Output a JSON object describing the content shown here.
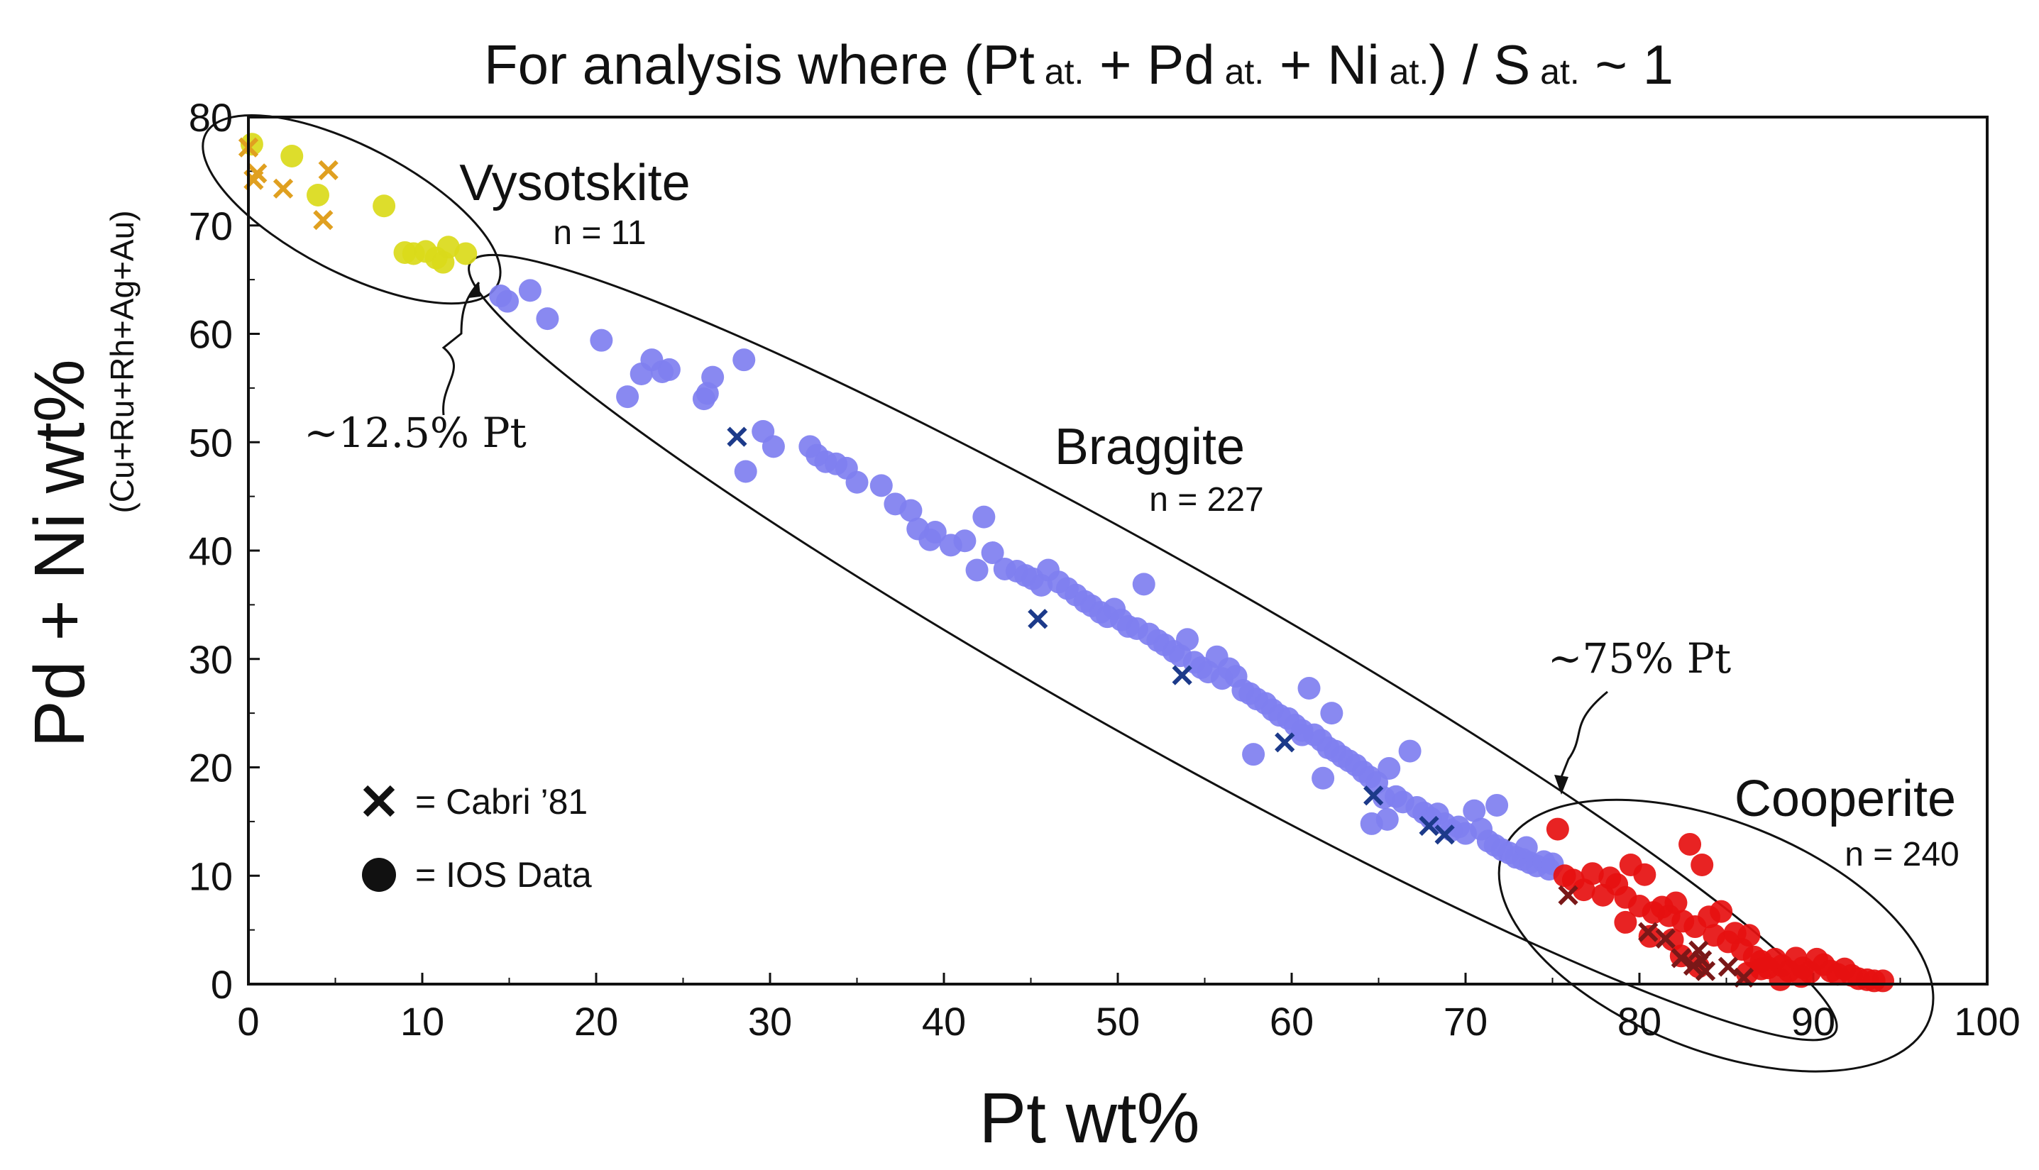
{
  "chart_data": {
    "type": "scatter",
    "title": {
      "prefix": "For analysis where  (Pt",
      "pt_sub": " at.",
      "plus_pd": " + Pd",
      "pd_sub": " at.",
      "plus_ni": " + Ni",
      "ni_sub": " at.",
      "suffix": ") / S",
      "s_sub": " at.",
      "tail": " ~ 1"
    },
    "xlabel": "Pt wt%",
    "ylabel": "Pd + Ni wt%",
    "ylabel_sub": "(Cu+Ru+Rh+Ag+Au)",
    "xlim": [
      0,
      100
    ],
    "ylim": [
      0,
      80
    ],
    "xticks": [
      0,
      10,
      20,
      30,
      40,
      50,
      60,
      70,
      80,
      90,
      100
    ],
    "yticks": [
      0,
      10,
      20,
      30,
      40,
      50,
      60,
      70,
      80
    ],
    "legend": {
      "position": "bottom-left",
      "cross_label": "= Cabri ’81",
      "circle_label": "= IOS Data"
    },
    "groups": [
      {
        "name": "Vysotskite",
        "n_label": "n = 11",
        "color": "#dada1a",
        "cross_color": "#e0a020",
        "ios": [
          [
            0.2,
            77.5
          ],
          [
            2.5,
            76.4
          ],
          [
            4,
            72.8
          ],
          [
            7.8,
            71.8
          ],
          [
            9,
            67.5
          ],
          [
            9.5,
            67.4
          ],
          [
            10.2,
            67.6
          ],
          [
            10.8,
            67
          ],
          [
            11.2,
            66.6
          ],
          [
            11.5,
            68
          ],
          [
            12.5,
            67.4
          ]
        ],
        "cabri": [
          [
            0,
            77.2
          ],
          [
            0.3,
            74.2
          ],
          [
            0.5,
            74.8
          ],
          [
            2,
            73.4
          ],
          [
            4.3,
            70.5
          ],
          [
            4.6,
            75.1
          ]
        ]
      },
      {
        "name": "Braggite",
        "n_label": "n = 227",
        "color": "#7f7ff0",
        "cross_color": "#1c3a8a",
        "ios": [
          [
            14.5,
            63.5
          ],
          [
            14.9,
            63
          ],
          [
            16.2,
            64
          ],
          [
            17.2,
            61.4
          ],
          [
            20.3,
            59.4
          ],
          [
            21.8,
            54.2
          ],
          [
            22.6,
            56.3
          ],
          [
            23.2,
            57.6
          ],
          [
            23.8,
            56.5
          ],
          [
            24.2,
            56.7
          ],
          [
            26.2,
            54
          ],
          [
            26.7,
            56
          ],
          [
            26.4,
            54.5
          ],
          [
            28.5,
            57.6
          ],
          [
            28.6,
            47.3
          ],
          [
            29.6,
            51
          ],
          [
            30.2,
            49.6
          ],
          [
            32.3,
            49.6
          ],
          [
            32.7,
            48.8
          ],
          [
            33.2,
            48.2
          ],
          [
            33.8,
            48
          ],
          [
            34.4,
            47.6
          ],
          [
            35,
            46.3
          ],
          [
            36.4,
            46
          ],
          [
            37.2,
            44.3
          ],
          [
            38.1,
            43.7
          ],
          [
            38.5,
            42
          ],
          [
            39.2,
            41
          ],
          [
            39.5,
            41.7
          ],
          [
            40.4,
            40.5
          ],
          [
            41.2,
            40.9
          ],
          [
            41.9,
            38.2
          ],
          [
            42.3,
            43.1
          ],
          [
            42.8,
            39.8
          ],
          [
            43.5,
            38.3
          ],
          [
            44.2,
            38.1
          ],
          [
            44.7,
            37.7
          ],
          [
            45.1,
            37.4
          ],
          [
            45.6,
            36.8
          ],
          [
            46,
            38.2
          ],
          [
            46.6,
            37.1
          ],
          [
            47.1,
            36.5
          ],
          [
            47.6,
            35.9
          ],
          [
            48.1,
            35.3
          ],
          [
            48.5,
            34.9
          ],
          [
            49,
            34.3
          ],
          [
            49.4,
            33.9
          ],
          [
            49.8,
            34.6
          ],
          [
            50.2,
            33.6
          ],
          [
            50.6,
            33
          ],
          [
            51.1,
            32.8
          ],
          [
            51.5,
            36.9
          ],
          [
            51.8,
            32.3
          ],
          [
            52.3,
            31.7
          ],
          [
            52.7,
            31.3
          ],
          [
            53.2,
            30.7
          ],
          [
            53.6,
            30.3
          ],
          [
            54,
            31.8
          ],
          [
            54.4,
            29.7
          ],
          [
            54.8,
            29.2
          ],
          [
            55.2,
            28.8
          ],
          [
            55.7,
            30.2
          ],
          [
            56,
            28.2
          ],
          [
            56.4,
            29.1
          ],
          [
            56.8,
            28.4
          ],
          [
            57.2,
            27.1
          ],
          [
            57.6,
            26.8
          ],
          [
            58,
            26.3
          ],
          [
            58.5,
            25.9
          ],
          [
            58.9,
            25.3
          ],
          [
            59.3,
            24.8
          ],
          [
            59.8,
            24.5
          ],
          [
            60.2,
            23.9
          ],
          [
            60.6,
            23.4
          ],
          [
            61,
            27.3
          ],
          [
            61.3,
            23
          ],
          [
            61.7,
            22.5
          ],
          [
            62.1,
            21.8
          ],
          [
            62.5,
            21.5
          ],
          [
            62.9,
            21
          ],
          [
            63.3,
            20.6
          ],
          [
            63.7,
            20.2
          ],
          [
            64.1,
            19.6
          ],
          [
            64.5,
            19.1
          ],
          [
            64.9,
            18.6
          ],
          [
            65.3,
            17.2
          ],
          [
            65.6,
            19.9
          ],
          [
            66,
            17.3
          ],
          [
            66.4,
            16.8
          ],
          [
            66.8,
            21.5
          ],
          [
            67.2,
            16.3
          ],
          [
            67.6,
            15.8
          ],
          [
            68,
            15.3
          ],
          [
            68.4,
            15.7
          ],
          [
            68.8,
            14.8
          ],
          [
            69.2,
            14.2
          ],
          [
            69.6,
            14.5
          ],
          [
            70,
            13.9
          ],
          [
            70.5,
            16
          ],
          [
            70.9,
            14.3
          ],
          [
            71.3,
            13.2
          ],
          [
            71.7,
            12.8
          ],
          [
            72.1,
            12.4
          ],
          [
            72.5,
            12.1
          ],
          [
            72.9,
            11.7
          ],
          [
            73.3,
            11.5
          ],
          [
            73.7,
            11.2
          ],
          [
            74.1,
            10.9
          ],
          [
            74.5,
            11.3
          ],
          [
            74.8,
            10.6
          ],
          [
            75,
            11.1
          ],
          [
            57.8,
            21.2
          ],
          [
            60.6,
            23
          ],
          [
            62.3,
            25
          ],
          [
            64.6,
            14.8
          ],
          [
            65.5,
            15.2
          ],
          [
            61.8,
            19
          ],
          [
            71.8,
            16.5
          ],
          [
            73.5,
            12.6
          ]
        ],
        "cabri": [
          [
            28.1,
            50.5
          ],
          [
            45.4,
            33.7
          ],
          [
            53.7,
            28.5
          ],
          [
            59.6,
            22.3
          ],
          [
            64.7,
            17.4
          ],
          [
            67.9,
            14.6
          ],
          [
            68.8,
            13.8
          ]
        ]
      },
      {
        "name": "Cooperite",
        "n_label": "n = 240",
        "color": "#e61010",
        "cross_color": "#7a1818",
        "ios": [
          [
            75.3,
            14.3
          ],
          [
            75.7,
            10
          ],
          [
            76.2,
            9.6
          ],
          [
            76.8,
            8.7
          ],
          [
            77.3,
            10.2
          ],
          [
            77.9,
            8.2
          ],
          [
            78.3,
            9.8
          ],
          [
            78.7,
            9.2
          ],
          [
            79.2,
            8
          ],
          [
            79.5,
            11
          ],
          [
            80,
            7.2
          ],
          [
            80.3,
            10.1
          ],
          [
            80.8,
            6.6
          ],
          [
            81.3,
            7.1
          ],
          [
            81.7,
            6.3
          ],
          [
            82.1,
            7.5
          ],
          [
            82.5,
            5.8
          ],
          [
            82.9,
            12.9
          ],
          [
            83.2,
            5.3
          ],
          [
            83.6,
            11
          ],
          [
            84,
            6.2
          ],
          [
            84.3,
            4.5
          ],
          [
            84.7,
            6.7
          ],
          [
            85.1,
            3.9
          ],
          [
            85.5,
            4.7
          ],
          [
            85.9,
            3.2
          ],
          [
            86.3,
            4.5
          ],
          [
            86.6,
            2.5
          ],
          [
            87,
            2.1
          ],
          [
            87.4,
            1.5
          ],
          [
            87.8,
            2.3
          ],
          [
            88.2,
            1.7
          ],
          [
            88.6,
            1.2
          ],
          [
            89,
            2.4
          ],
          [
            89.4,
            1.5
          ],
          [
            89.8,
            1.1
          ],
          [
            90.2,
            2.3
          ],
          [
            90.6,
            1.8
          ],
          [
            91,
            1.2
          ],
          [
            91.4,
            0.9
          ],
          [
            91.8,
            1.4
          ],
          [
            92.2,
            0.8
          ],
          [
            92.6,
            0.5
          ],
          [
            93.1,
            0.4
          ],
          [
            93.5,
            0.3
          ],
          [
            94,
            0.3
          ],
          [
            82.4,
            2.6
          ],
          [
            86.2,
            1
          ],
          [
            83.4,
            1.6
          ],
          [
            87,
            1.4
          ],
          [
            88.1,
            0.4
          ],
          [
            89.3,
            0.7
          ],
          [
            79.2,
            5.7
          ],
          [
            80.6,
            4.4
          ],
          [
            81.9,
            4.1
          ]
        ],
        "cabri": [
          [
            75.9,
            8.2
          ],
          [
            80.5,
            4.8
          ],
          [
            81.5,
            4.2
          ],
          [
            82.4,
            2.4
          ],
          [
            83.1,
            1.7
          ],
          [
            83.4,
            3.1
          ],
          [
            83.6,
            2.2
          ],
          [
            83.8,
            1.2
          ],
          [
            85.1,
            1.6
          ],
          [
            86,
            0.6
          ]
        ]
      }
    ],
    "annotations": [
      {
        "text": "~12.5% Pt",
        "at": [
          13,
          64
        ]
      },
      {
        "text": "~75% Pt",
        "at": [
          75,
          14
        ]
      }
    ]
  }
}
